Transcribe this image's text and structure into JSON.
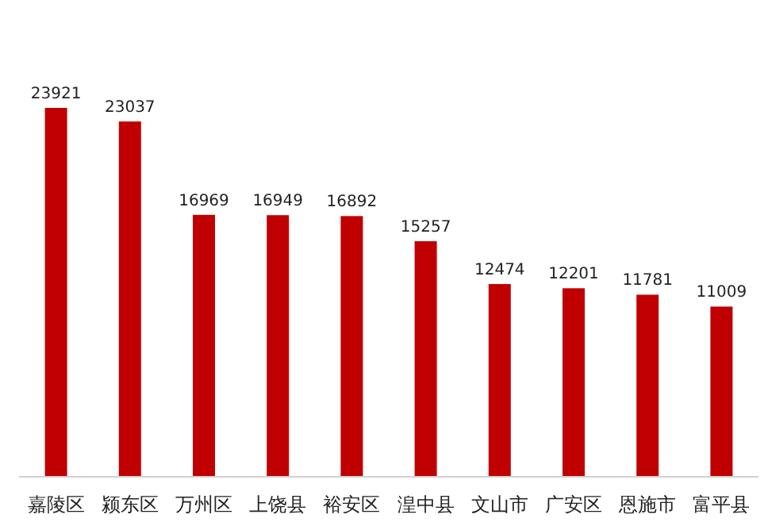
{
  "chart_data": {
    "type": "bar",
    "categories": [
      "嘉陵区",
      "颍东区",
      "万州区",
      "上饶县",
      "裕安区",
      "湟中县",
      "文山市",
      "广安区",
      "恩施市",
      "富平县"
    ],
    "values": [
      23921,
      23037,
      16969,
      16949,
      16892,
      15257,
      12474,
      12201,
      11781,
      11009
    ],
    "color": "#c00000",
    "data_labels": true
  }
}
